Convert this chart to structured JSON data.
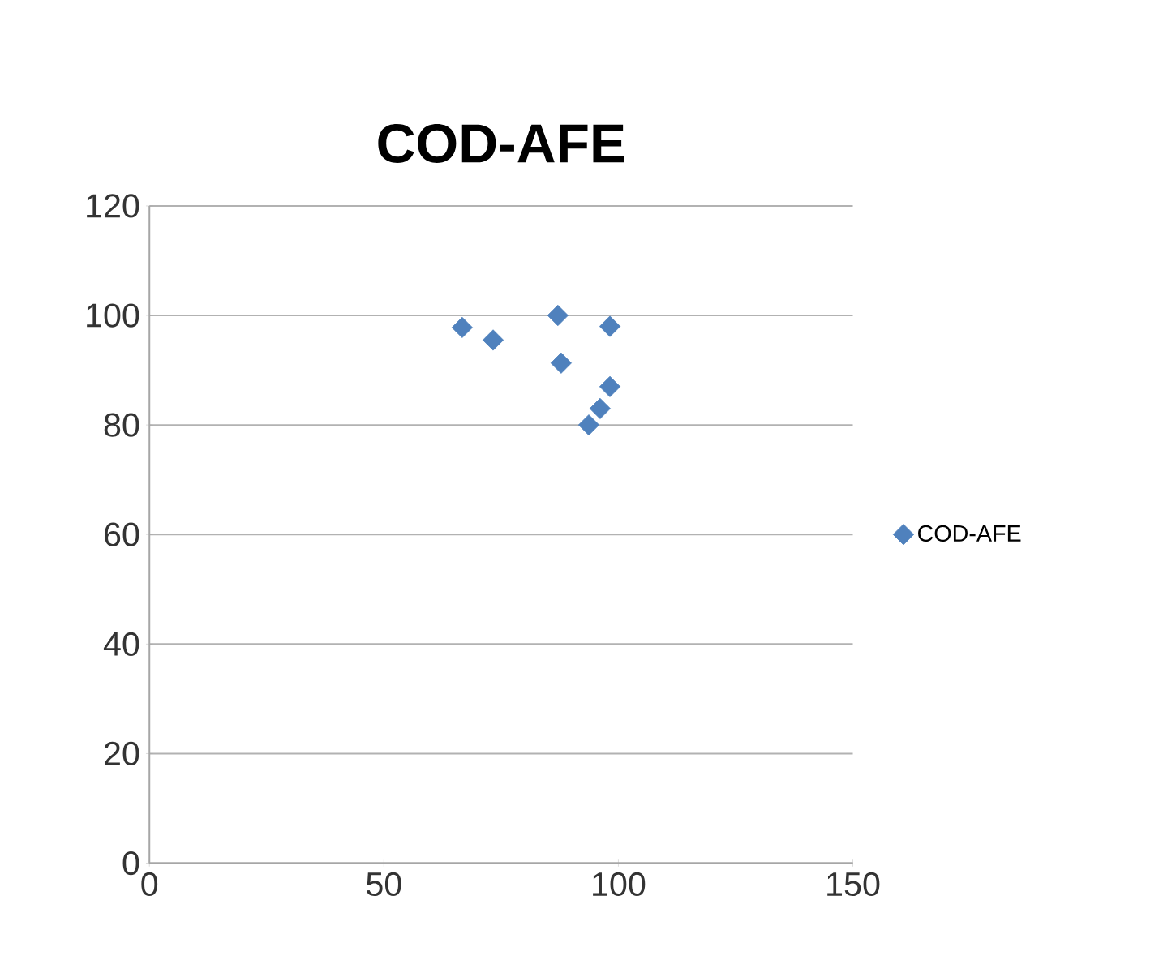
{
  "chart_data": {
    "type": "scatter",
    "title": "COD-AFE",
    "series": [
      {
        "name": "COD-AFE",
        "color": "#4f81bd",
        "x": [
          66.7,
          73.3,
          87.1,
          98.2,
          87.8,
          98.2,
          96.1,
          93.7
        ],
        "values": [
          97.8,
          95.5,
          100,
          98,
          91.3,
          87,
          83,
          80
        ]
      }
    ],
    "xlim": [
      0,
      150
    ],
    "xticks": [
      0,
      50,
      100,
      150
    ],
    "ylim": [
      0,
      120
    ],
    "yticks": [
      0,
      20,
      40,
      60,
      80,
      100,
      120
    ],
    "grid": "y",
    "legend": "right",
    "marker": "diamond"
  }
}
